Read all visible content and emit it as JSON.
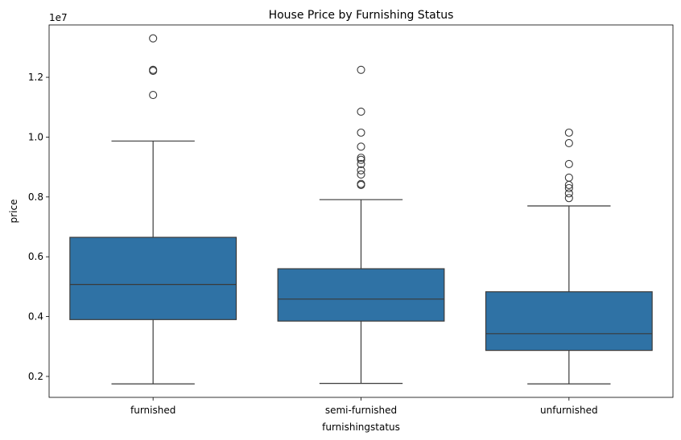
{
  "chart_data": {
    "type": "boxplot",
    "title": "House Price by Furnishing Status",
    "xlabel": "furnishingstatus",
    "ylabel": "price",
    "y_offset_label": "1e7",
    "y_scale": 10000000,
    "ylim": [
      1300000,
      13750000
    ],
    "y_ticks": [
      2000000,
      4000000,
      6000000,
      8000000,
      10000000,
      12000000
    ],
    "y_tick_labels": [
      "0.2",
      "0.4",
      "0.6",
      "0.8",
      "1.0",
      "1.2"
    ],
    "box_color": "#2f72a5",
    "line_color": "#3a3a3a",
    "categories": [
      "furnished",
      "semi-furnished",
      "unfurnished"
    ],
    "boxes": [
      {
        "category": "furnished",
        "whisker_low": 1750000,
        "q1": 3900000,
        "median": 5075000,
        "q3": 6650000,
        "whisker_high": 9870000,
        "outliers": [
          13300000,
          12250000,
          12215000,
          11410000
        ]
      },
      {
        "category": "semi-furnished",
        "whisker_low": 1767000,
        "q1": 3850000,
        "median": 4585000,
        "q3": 5600000,
        "whisker_high": 7910000,
        "outliers": [
          12250000,
          10850000,
          10150000,
          9681000,
          9310000,
          9240000,
          9100000,
          8890000,
          8750000,
          8435000,
          8400000
        ]
      },
      {
        "category": "unfurnished",
        "whisker_low": 1750000,
        "q1": 2870000,
        "median": 3430000,
        "q3": 4830000,
        "whisker_high": 7700000,
        "outliers": [
          10150000,
          9800000,
          9100000,
          8645000,
          8400000,
          8295000,
          8120000,
          7962000
        ]
      }
    ]
  }
}
